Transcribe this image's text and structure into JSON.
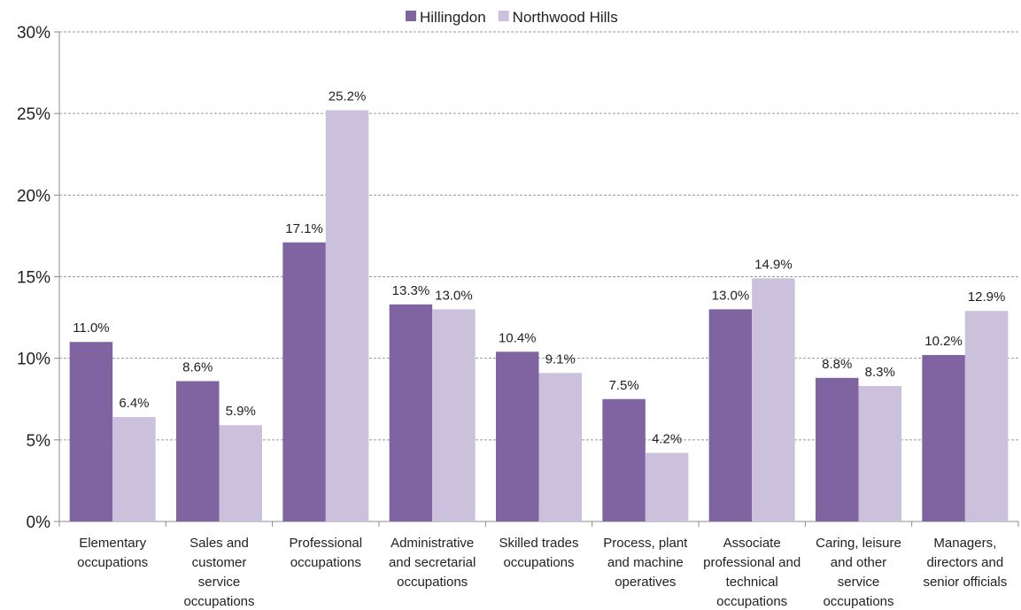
{
  "chart_data": {
    "type": "bar",
    "title": "",
    "xlabel": "",
    "ylabel": "",
    "ylim": [
      0,
      30
    ],
    "y_ticks": [
      "0%",
      "5%",
      "10%",
      "15%",
      "20%",
      "25%",
      "30%"
    ],
    "y_tick_values": [
      0,
      5,
      10,
      15,
      20,
      25,
      30
    ],
    "grid": true,
    "legend_position": "top-center",
    "categories": [
      [
        "Elementary",
        "occupations"
      ],
      [
        "Sales and",
        "customer",
        "service",
        "occupations"
      ],
      [
        "Professional",
        "occupations"
      ],
      [
        "Administrative",
        "and secretarial",
        "occupations"
      ],
      [
        "Skilled trades",
        "occupations"
      ],
      [
        "Process, plant",
        "and machine",
        "operatives"
      ],
      [
        "Associate",
        "professional and",
        "technical",
        "occupations"
      ],
      [
        "Caring, leisure",
        "and other",
        "service",
        "occupations"
      ],
      [
        "Managers,",
        "directors and",
        "senior officials"
      ]
    ],
    "series": [
      {
        "name": "Hillingdon",
        "color": "#8064a2",
        "values": [
          11.0,
          8.6,
          17.1,
          13.3,
          10.4,
          7.5,
          13.0,
          8.8,
          10.2
        ],
        "labels": [
          "11.0%",
          "8.6%",
          "17.1%",
          "13.3%",
          "10.4%",
          "7.5%",
          "13.0%",
          "8.8%",
          "10.2%"
        ]
      },
      {
        "name": "Northwood Hills",
        "color": "#ccc1dd",
        "values": [
          6.4,
          5.9,
          25.2,
          13.0,
          9.1,
          4.2,
          14.9,
          8.3,
          12.9
        ],
        "labels": [
          "6.4%",
          "5.9%",
          "25.2%",
          "13.0%",
          "9.1%",
          "4.2%",
          "14.9%",
          "8.3%",
          "12.9%"
        ]
      }
    ]
  }
}
